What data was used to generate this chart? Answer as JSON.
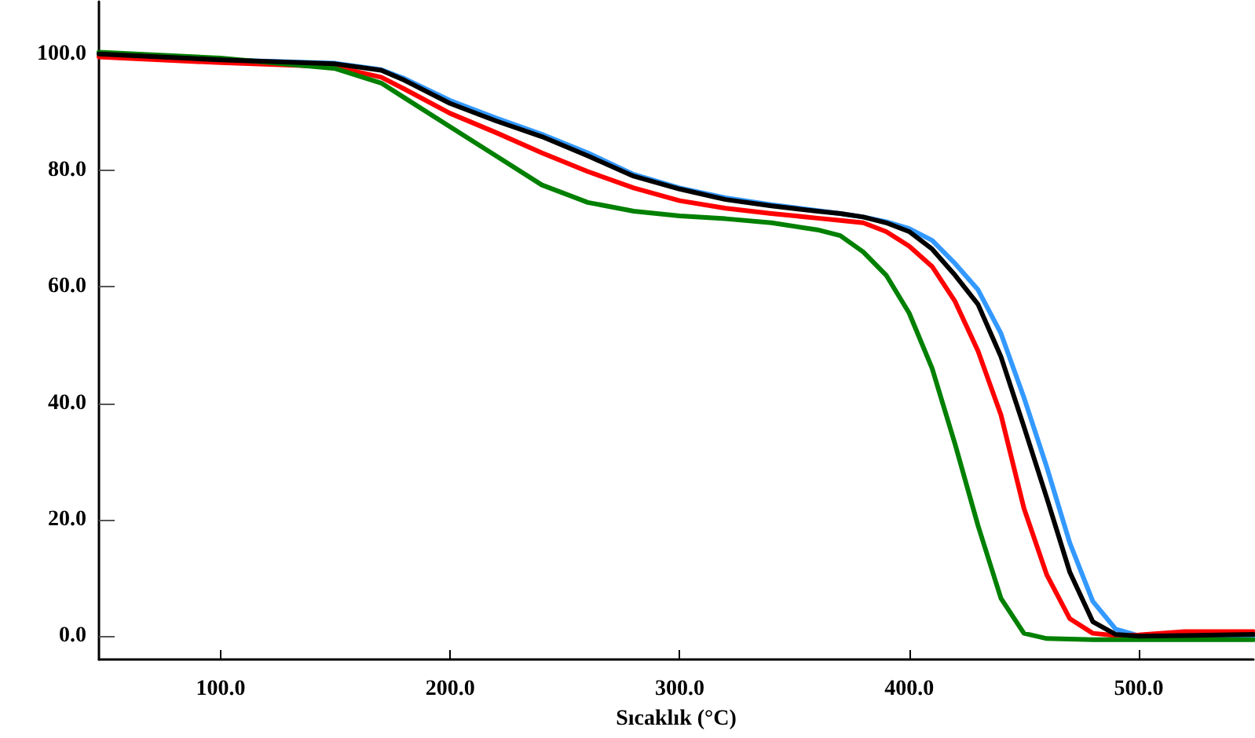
{
  "chart_data": {
    "type": "line",
    "xlabel": "Sıcaklık (°C)",
    "xlim": [
      47,
      550
    ],
    "ylim": [
      -4,
      109
    ],
    "xticks": [
      {
        "value": 100,
        "label": "100.0"
      },
      {
        "value": 200,
        "label": "200.0"
      },
      {
        "value": 300,
        "label": "300.0"
      },
      {
        "value": 400,
        "label": "400.0"
      },
      {
        "value": 500,
        "label": "500.0"
      }
    ],
    "yticks": [
      {
        "value": 0,
        "label": "0.0"
      },
      {
        "value": 20,
        "label": "20.0"
      },
      {
        "value": 40,
        "label": "40.0"
      },
      {
        "value": 60,
        "label": "60.0"
      },
      {
        "value": 80,
        "label": "80.0"
      },
      {
        "value": 100,
        "label": "100.0"
      }
    ],
    "x": [
      47,
      100,
      150,
      170,
      180,
      200,
      220,
      240,
      260,
      280,
      300,
      320,
      340,
      360,
      370,
      380,
      390,
      400,
      410,
      420,
      430,
      440,
      450,
      460,
      470,
      480,
      490,
      500,
      520,
      550
    ],
    "series": [
      {
        "color": "#3399ff",
        "values": [
          100,
          99,
          98.4,
          97.3,
          95.8,
          92,
          89,
          86.2,
          83,
          79.3,
          77,
          75.3,
          74.1,
          73.1,
          72.6,
          72,
          71.2,
          70,
          68,
          64,
          59.5,
          52,
          41,
          29,
          16,
          6,
          1.2,
          0.1,
          0,
          0
        ]
      },
      {
        "color": "#ff0000",
        "values": [
          99.5,
          98.5,
          97.8,
          96,
          94,
          89.8,
          86.5,
          83,
          79.8,
          77,
          74.8,
          73.5,
          72.6,
          71.8,
          71.4,
          71,
          69.5,
          67,
          63.5,
          57.5,
          49,
          38,
          22,
          10.5,
          3,
          0.5,
          0.1,
          0.2,
          0.8,
          0.8
        ]
      },
      {
        "color": "#008000",
        "values": [
          100.3,
          99.3,
          97.5,
          95,
          92.5,
          87.5,
          82.5,
          77.5,
          74.5,
          73,
          72.2,
          71.7,
          71,
          69.8,
          68.8,
          66,
          62,
          55.5,
          46,
          33,
          19,
          6.5,
          0.5,
          -0.4,
          -0.5,
          -0.6,
          -0.6,
          -0.6,
          -0.6,
          -0.6
        ]
      },
      {
        "color": "#000000",
        "values": [
          100,
          99,
          98.3,
          97.2,
          95.5,
          91.5,
          88.5,
          85.8,
          82.5,
          79,
          76.8,
          75,
          73.9,
          73,
          72.6,
          72,
          71,
          69.5,
          66.5,
          62,
          57,
          48,
          36,
          23.7,
          11,
          2.5,
          0.3,
          0,
          0.1,
          0.3
        ]
      }
    ],
    "grid": false,
    "marker": "none",
    "line_style": "solid"
  }
}
